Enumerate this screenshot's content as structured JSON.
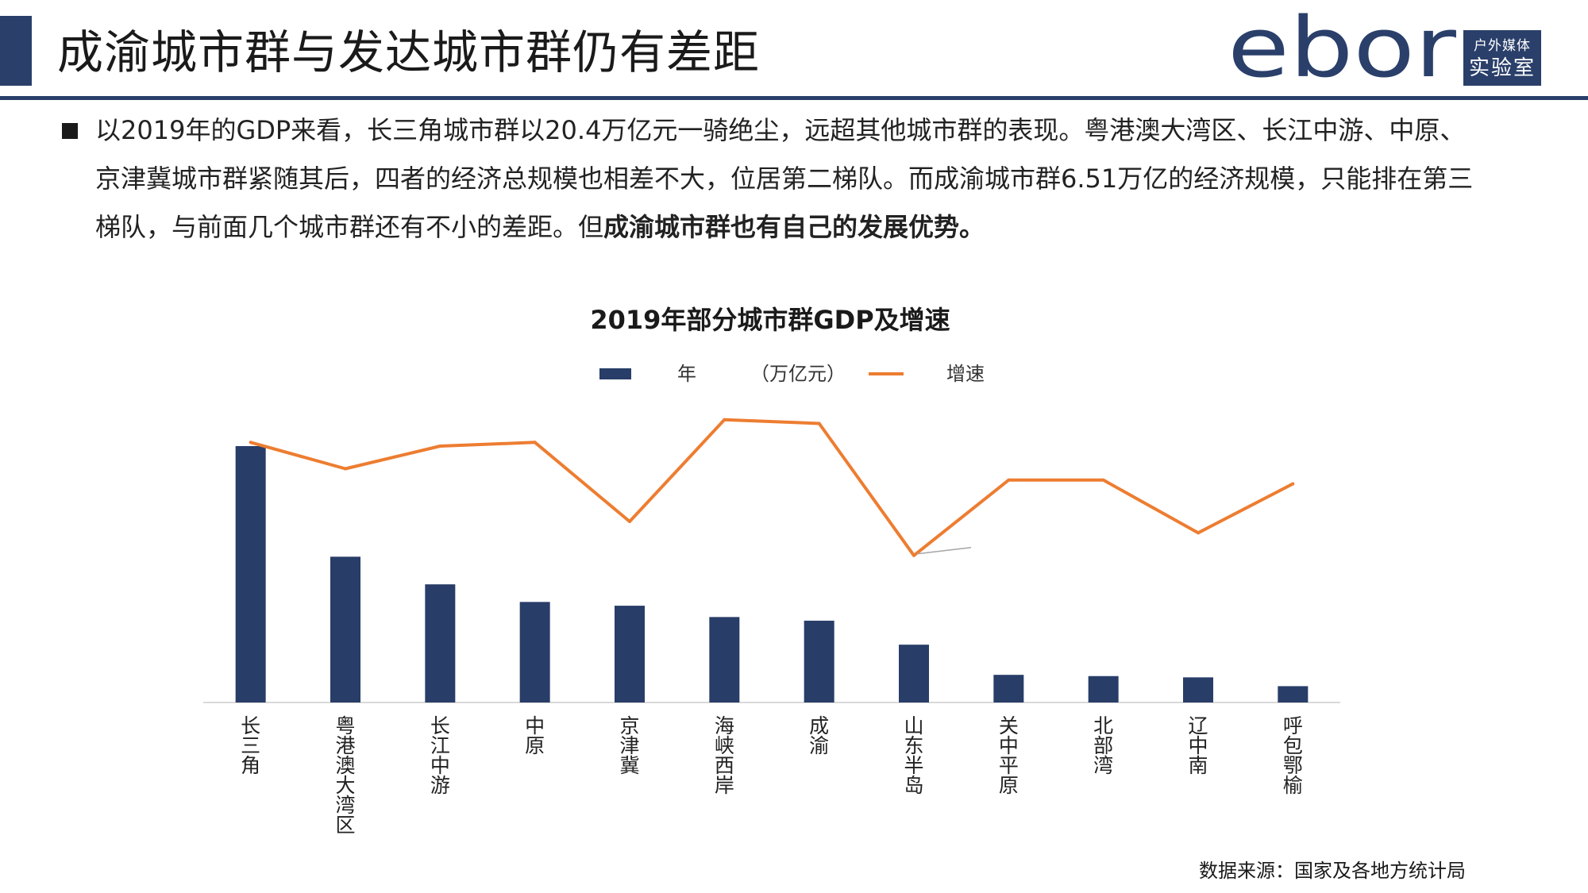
{
  "header": {
    "title": "成渝城市群与发达城市群仍有差距",
    "brand_wordmark": "ebor",
    "brand_badge_line1": "户外媒体",
    "brand_badge_line2": "实验室"
  },
  "summary": {
    "text_normal": "以2019年的GDP来看，长三角城市群以20.4万亿元一骑绝尘，远超其他城市群的表现。粤港澳大湾区、长江中游、中原、京津冀城市群紧随其后，四者的经济总规模也相差不大，位居第二梯队。而成渝城市群6.51万亿的经济规模，只能排在第三梯队，与前面几个城市群还有不小的差距。但",
    "text_bold": "成渝城市群也有自己的发展优势。"
  },
  "legend": {
    "bar_label_year": "年",
    "bar_label_unit": "（万亿元）",
    "line_label": "增速"
  },
  "colors": {
    "bar": "#283d68",
    "line": "#ed7d31",
    "brand": "#2a3f6a"
  },
  "chart_data": {
    "type": "bar",
    "title": "2019年部分城市群GDP及增速",
    "categories": [
      "长三角",
      "粤港澳大湾区",
      "长江中游",
      "中原",
      "京津冀",
      "海峡西岸",
      "成渝",
      "山东半岛",
      "关中平原",
      "北部湾",
      "辽中南",
      "呼包鄂榆"
    ],
    "series": [
      {
        "name": "年（万亿元）",
        "kind": "bar",
        "axis": "left",
        "values": [
          20.4,
          11.6,
          9.4,
          8.0,
          7.7,
          6.8,
          6.51,
          4.6,
          2.2,
          2.1,
          2.0,
          1.3
        ]
      },
      {
        "name": "增速",
        "kind": "line",
        "axis": "right",
        "values": [
          6.9,
          6.2,
          6.8,
          6.9,
          4.8,
          7.5,
          7.4,
          3.9,
          5.9,
          5.9,
          4.5,
          5.8
        ]
      }
    ],
    "ylim_left": [
      0,
      24
    ],
    "ylim_right": [
      0,
      8
    ],
    "xlabel": "",
    "ylabel": "",
    "grid": false,
    "legend_position": "top-center"
  },
  "source": {
    "text": "数据来源：国家及各地方统计局"
  }
}
